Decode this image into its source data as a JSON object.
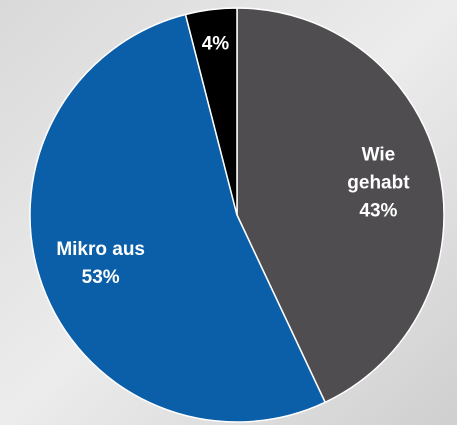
{
  "chart_data": {
    "type": "pie",
    "categories": [
      "Wie gehabt",
      "Mikro aus",
      null
    ],
    "values": [
      43,
      53,
      4
    ],
    "value_labels": [
      "43%",
      "53%",
      "4%"
    ],
    "colors": [
      "#4f4d4f",
      "#0b5ea8",
      "#000000"
    ]
  }
}
